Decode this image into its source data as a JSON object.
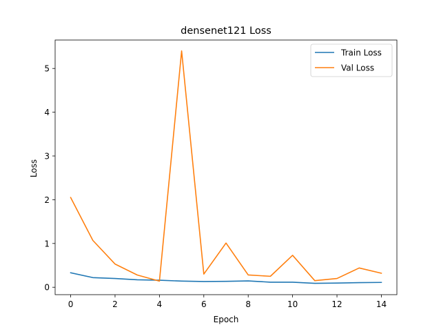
{
  "chart_data": {
    "type": "line",
    "title": "densenet121 Loss",
    "xlabel": "Epoch",
    "ylabel": "Loss",
    "x": [
      0,
      1,
      2,
      3,
      4,
      5,
      6,
      7,
      8,
      9,
      10,
      11,
      12,
      13,
      14
    ],
    "xlim": [
      -0.7,
      14.7
    ],
    "ylim": [
      -0.17,
      5.65
    ],
    "xticks": [
      0,
      2,
      4,
      6,
      8,
      10,
      12,
      14
    ],
    "yticks": [
      0,
      1,
      2,
      3,
      4,
      5
    ],
    "grid": false,
    "legend_position": "top-right",
    "series": [
      {
        "name": "Train Loss",
        "color": "#1f77b4",
        "values": [
          0.33,
          0.22,
          0.2,
          0.17,
          0.16,
          0.14,
          0.13,
          0.135,
          0.145,
          0.115,
          0.115,
          0.09,
          0.095,
          0.105,
          0.11
        ]
      },
      {
        "name": "Val Loss",
        "color": "#ff7f0e",
        "values": [
          2.05,
          1.07,
          0.53,
          0.28,
          0.14,
          5.4,
          0.3,
          1.01,
          0.28,
          0.25,
          0.73,
          0.15,
          0.2,
          0.44,
          0.32
        ]
      }
    ]
  }
}
